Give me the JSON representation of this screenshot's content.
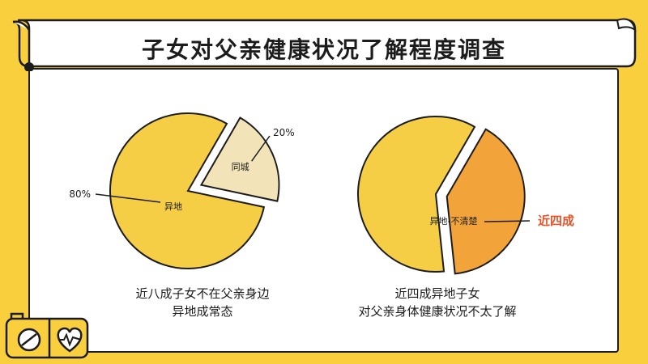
{
  "title": "子女对父亲健康状况了解程度调查",
  "chart_data": [
    {
      "type": "pie",
      "slices": [
        {
          "label": "异地",
          "value": 80,
          "value_label": "80%",
          "color": "#f5ce45",
          "exploded": false
        },
        {
          "label": "同城",
          "value": 20,
          "value_label": "20%",
          "color": "#f2e4b8",
          "exploded": true
        }
      ],
      "caption": [
        "近八成子女不在父亲身边",
        "异地成常态"
      ]
    },
    {
      "type": "pie",
      "slices": [
        {
          "label": "",
          "value": 60,
          "color": "#f5ce45",
          "exploded": false
        },
        {
          "label": "异地-不清楚",
          "value": 40,
          "color": "#f2a43a",
          "exploded": true
        }
      ],
      "callout": {
        "text": "近四成",
        "color": "#e8532a"
      },
      "caption": [
        "近四成异地子女",
        "对父亲身体健康状况不太了解"
      ]
    }
  ]
}
